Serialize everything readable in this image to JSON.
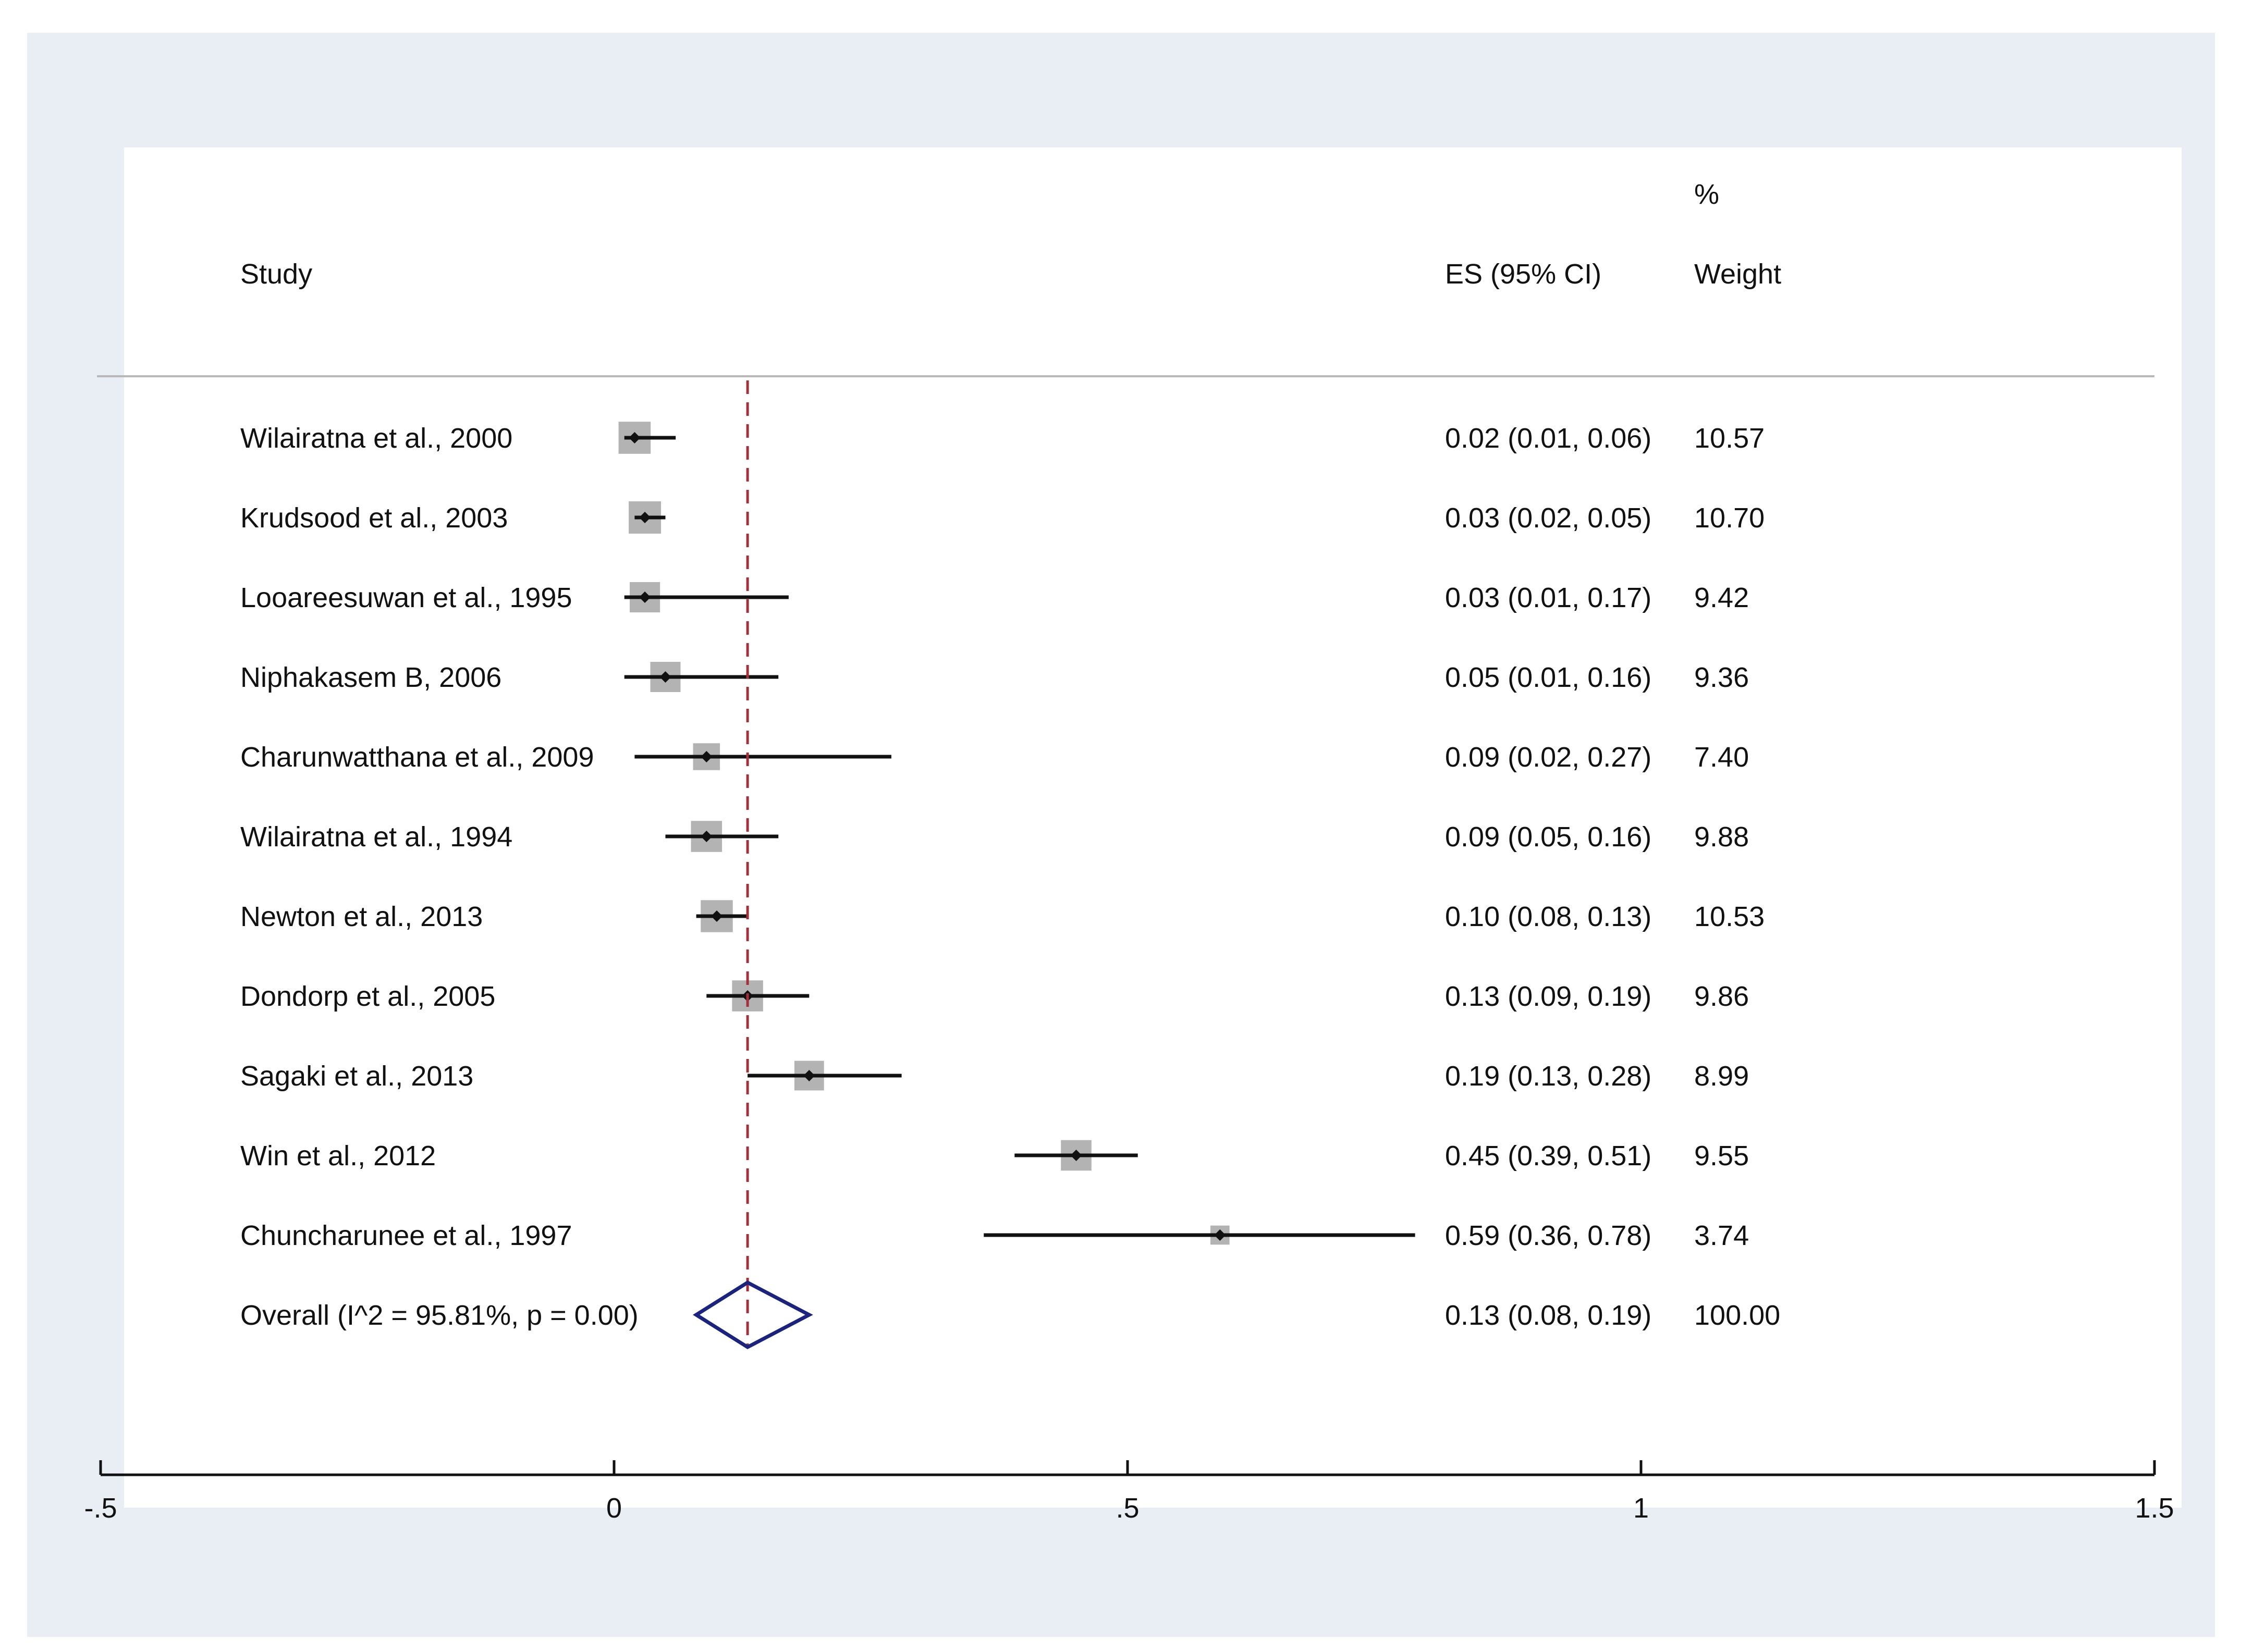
{
  "chart_data": {
    "type": "forest",
    "header": {
      "study": "Study",
      "es": "ES (95% CI)",
      "weight_line1": "%",
      "weight_line2": "Weight"
    },
    "studies": [
      {
        "label": "Wilairatna et al., 2000",
        "es": 0.02,
        "lo": 0.01,
        "hi": 0.06,
        "weight": 10.57,
        "es_text": "0.02 (0.01, 0.06)",
        "weight_text": "10.57"
      },
      {
        "label": "Krudsood et al., 2003",
        "es": 0.03,
        "lo": 0.02,
        "hi": 0.05,
        "weight": 10.7,
        "es_text": "0.03 (0.02, 0.05)",
        "weight_text": "10.70"
      },
      {
        "label": "Looareesuwan et al., 1995",
        "es": 0.03,
        "lo": 0.01,
        "hi": 0.17,
        "weight": 9.42,
        "es_text": "0.03 (0.01, 0.17)",
        "weight_text": "9.42"
      },
      {
        "label": "Niphakasem B, 2006",
        "es": 0.05,
        "lo": 0.01,
        "hi": 0.16,
        "weight": 9.36,
        "es_text": "0.05 (0.01, 0.16)",
        "weight_text": "9.36"
      },
      {
        "label": "Charunwatthana et al., 2009",
        "es": 0.09,
        "lo": 0.02,
        "hi": 0.27,
        "weight": 7.4,
        "es_text": "0.09 (0.02, 0.27)",
        "weight_text": "7.40"
      },
      {
        "label": "Wilairatna et al., 1994",
        "es": 0.09,
        "lo": 0.05,
        "hi": 0.16,
        "weight": 9.88,
        "es_text": "0.09 (0.05, 0.16)",
        "weight_text": "9.88"
      },
      {
        "label": "Newton et al., 2013",
        "es": 0.1,
        "lo": 0.08,
        "hi": 0.13,
        "weight": 10.53,
        "es_text": "0.10 (0.08, 0.13)",
        "weight_text": "10.53"
      },
      {
        "label": "Dondorp et al., 2005",
        "es": 0.13,
        "lo": 0.09,
        "hi": 0.19,
        "weight": 9.86,
        "es_text": "0.13 (0.09, 0.19)",
        "weight_text": "9.86"
      },
      {
        "label": "Sagaki et al., 2013",
        "es": 0.19,
        "lo": 0.13,
        "hi": 0.28,
        "weight": 8.99,
        "es_text": "0.19 (0.13, 0.28)",
        "weight_text": "8.99"
      },
      {
        "label": "Win et al., 2012",
        "es": 0.45,
        "lo": 0.39,
        "hi": 0.51,
        "weight": 9.55,
        "es_text": "0.45 (0.39, 0.51)",
        "weight_text": "9.55"
      },
      {
        "label": "Chuncharunee et al., 1997",
        "es": 0.59,
        "lo": 0.36,
        "hi": 0.78,
        "weight": 3.74,
        "es_text": "0.59 (0.36, 0.78)",
        "weight_text": "3.74"
      }
    ],
    "overall": {
      "label": "Overall  (I^2 = 95.81%, p = 0.00)",
      "es": 0.13,
      "lo": 0.08,
      "hi": 0.19,
      "weight": 100.0,
      "es_text": "0.13 (0.08, 0.19)",
      "weight_text": "100.00"
    },
    "x_axis": {
      "range": [
        -0.5,
        1.5
      ],
      "ticks": [
        -0.5,
        0,
        0.5,
        1,
        1.5
      ],
      "tick_labels": [
        "-.5",
        "0",
        ".5",
        "1",
        "1.5"
      ]
    },
    "reference_line": {
      "value": 0.13,
      "style": "dashed"
    },
    "colors": {
      "marker": "#111111",
      "box": "#b3b3b3",
      "reference": "#a3303a",
      "diamond": "#1a237e",
      "axis": "#111111",
      "separator": "#b8b8b8"
    }
  }
}
